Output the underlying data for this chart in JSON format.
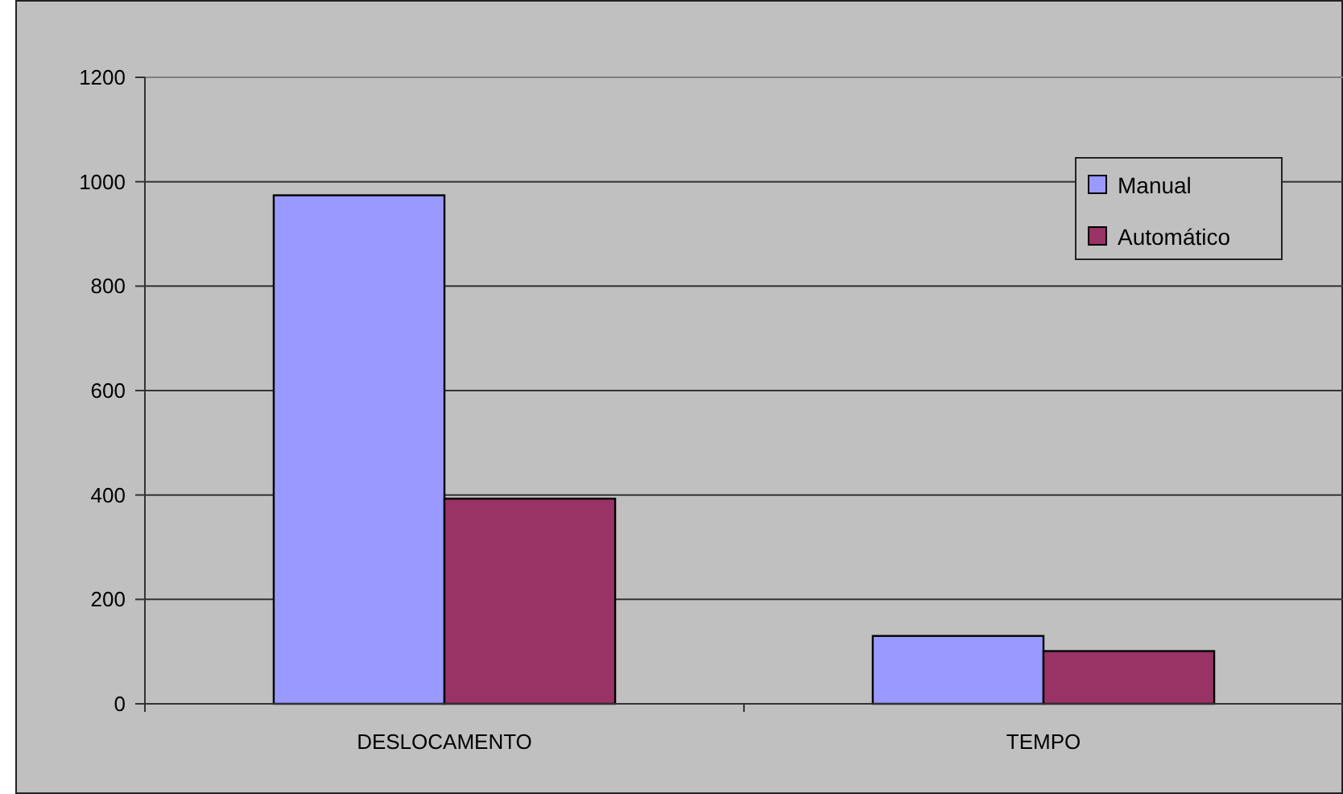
{
  "chart_data": {
    "type": "bar",
    "categories": [
      "DESLOCAMENTO",
      "TEMPO"
    ],
    "series": [
      {
        "name": "Manual",
        "color": "#9999ff",
        "values": [
          974,
          130
        ]
      },
      {
        "name": "Automático",
        "color": "#993366",
        "values": [
          393,
          101
        ]
      }
    ],
    "ylim": [
      0,
      1200
    ],
    "yticks": [
      0,
      200,
      400,
      600,
      800,
      1000,
      1200
    ],
    "grid": "y",
    "legend": "top right"
  }
}
